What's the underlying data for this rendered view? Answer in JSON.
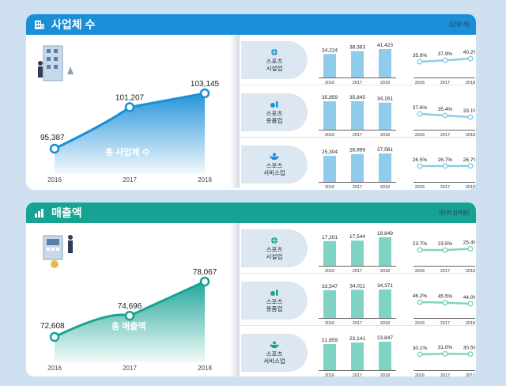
{
  "colors": {
    "blue": "#1a8fd8",
    "blue_bar": "#8fcbea",
    "teal": "#17a394",
    "teal_bar": "#7fd3c4"
  },
  "sections": [
    {
      "title": "사업체 수",
      "unit": "(단위:개)",
      "total_label": "총 사업체 수",
      "icon": "building-icon"
    },
    {
      "title": "매출액",
      "unit": "(단위:십억원)",
      "total_label": "총 매출액",
      "icon": "bar-growth-icon"
    }
  ],
  "chart_data": [
    {
      "type": "area",
      "section": "사업체 수",
      "title": "총 사업체 수",
      "x": [
        "2016",
        "2017",
        "2018"
      ],
      "values": [
        95387,
        101207,
        103145
      ],
      "labels": [
        "95,387",
        "101,207",
        "103,145"
      ]
    },
    {
      "type": "bar",
      "section": "사업체 수",
      "category": "스포츠 시설업",
      "x": [
        "2016",
        "2017",
        "2018"
      ],
      "values": [
        34224,
        38363,
        41423
      ],
      "labels": [
        "34,224",
        "38,363",
        "41,423"
      ]
    },
    {
      "type": "line",
      "section": "사업체 수",
      "category": "스포츠 시설업",
      "x": [
        "2016",
        "2017",
        "2018"
      ],
      "values": [
        35.9,
        37.9,
        40.2
      ],
      "labels": [
        "35.9%",
        "37.9%",
        "40.2%"
      ]
    },
    {
      "type": "bar",
      "section": "사업체 수",
      "category": "스포츠 용품업",
      "x": [
        "2016",
        "2017",
        "2018"
      ],
      "values": [
        35859,
        35845,
        34161
      ],
      "labels": [
        "35,859",
        "35,845",
        "34,161"
      ]
    },
    {
      "type": "line",
      "section": "사업체 수",
      "category": "스포츠 용품업",
      "x": [
        "2016",
        "2017",
        "2018"
      ],
      "values": [
        37.6,
        35.4,
        33.1
      ],
      "labels": [
        "37.6%",
        "35.4%",
        "33.1%"
      ]
    },
    {
      "type": "bar",
      "section": "사업체 수",
      "category": "스포츠 서비스업",
      "x": [
        "2016",
        "2017",
        "2018"
      ],
      "values": [
        25304,
        26999,
        27561
      ],
      "labels": [
        "25,304",
        "26,999",
        "27,561"
      ]
    },
    {
      "type": "line",
      "section": "사업체 수",
      "category": "스포츠 서비스업",
      "x": [
        "2016",
        "2017",
        "2018"
      ],
      "values": [
        26.5,
        26.7,
        26.7
      ],
      "labels": [
        "26.5%",
        "26.7%",
        "26.7%"
      ]
    },
    {
      "type": "area",
      "section": "매출액",
      "title": "총 매출액",
      "x": [
        "2016",
        "2017",
        "2018"
      ],
      "values": [
        72608,
        74696,
        78067
      ],
      "labels": [
        "72,608",
        "74,696",
        "78,067"
      ]
    },
    {
      "type": "bar",
      "section": "매출액",
      "category": "스포츠 시설업",
      "x": [
        "2016",
        "2017",
        "2018"
      ],
      "values": [
        17201,
        17544,
        19849
      ],
      "labels": [
        "17,201",
        "17,544",
        "19,849"
      ]
    },
    {
      "type": "line",
      "section": "매출액",
      "category": "스포츠 시설업",
      "x": [
        "2016",
        "2017",
        "2018"
      ],
      "values": [
        23.7,
        23.5,
        25.4
      ],
      "labels": [
        "23.7%",
        "23.5%",
        "25.4%"
      ]
    },
    {
      "type": "bar",
      "section": "매출액",
      "category": "스포츠 용품업",
      "x": [
        "2016",
        "2017",
        "2018"
      ],
      "values": [
        33547,
        34011,
        34371
      ],
      "labels": [
        "33,547",
        "34,011",
        "34,371"
      ]
    },
    {
      "type": "line",
      "section": "매출액",
      "category": "스포츠 용품업",
      "x": [
        "2016",
        "2017",
        "2018"
      ],
      "values": [
        46.2,
        45.5,
        44.0
      ],
      "labels": [
        "46.2%",
        "45.5%",
        "44.0%"
      ]
    },
    {
      "type": "bar",
      "section": "매출액",
      "category": "스포츠 서비스업",
      "x": [
        "2016",
        "2017",
        "2018"
      ],
      "values": [
        21859,
        23141,
        23847
      ],
      "labels": [
        "21,859",
        "23,141",
        "23,847"
      ]
    },
    {
      "type": "line",
      "section": "매출액",
      "category": "스포츠 서비스업",
      "x": [
        "2016",
        "2017",
        "2018"
      ],
      "values": [
        30.1,
        31.0,
        30.5
      ],
      "labels": [
        "30.1%",
        "31.0%",
        "30.5%"
      ]
    }
  ],
  "categories": [
    {
      "lines": [
        "스포츠",
        "시설업"
      ],
      "icon": "ball-icon"
    },
    {
      "lines": [
        "스포츠",
        "용품업"
      ],
      "icon": "equipment-icon"
    },
    {
      "lines": [
        "스포츠",
        "서비스업"
      ],
      "icon": "people-icon"
    }
  ]
}
